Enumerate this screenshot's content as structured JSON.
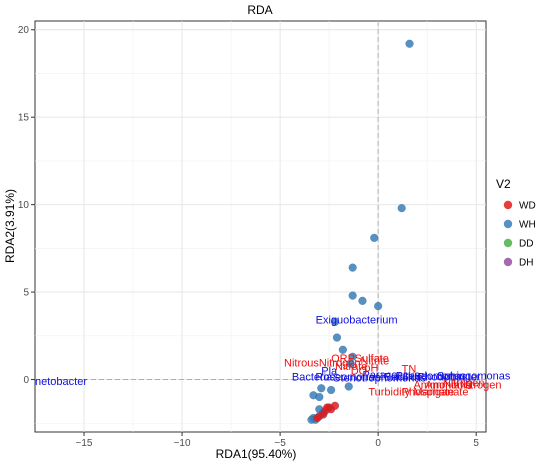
{
  "chart_data": {
    "type": "scatter",
    "title": "RDA",
    "xlabel": "RDA1(95.40%)",
    "ylabel": "RDA2(3.91%)",
    "xlim": [
      -17.5,
      5.5
    ],
    "ylim": [
      -3.0,
      20.5
    ],
    "xticks": [
      -15,
      -10,
      -5,
      0,
      5
    ],
    "yticks": [
      0,
      5,
      10,
      15,
      20
    ],
    "grid": true,
    "legend": {
      "title": "V2",
      "position": "right",
      "items": [
        {
          "name": "WD",
          "color": "#E41A1C"
        },
        {
          "name": "WH",
          "color": "#377EB8"
        },
        {
          "name": "DD",
          "color": "#4DAF4A"
        },
        {
          "name": "DH",
          "color": "#984EA3"
        }
      ]
    },
    "series": [
      {
        "name": "WH",
        "color": "#377EB8",
        "points": [
          [
            1.6,
            19.2
          ],
          [
            1.2,
            9.8
          ],
          [
            -0.2,
            8.1
          ],
          [
            -1.3,
            6.4
          ],
          [
            -0.8,
            4.5
          ],
          [
            -1.3,
            4.8
          ],
          [
            0.0,
            4.2
          ],
          [
            -2.2,
            3.3
          ],
          [
            -2.1,
            2.4
          ],
          [
            -1.8,
            1.7
          ],
          [
            -1.3,
            1.3
          ],
          [
            -1.4,
            0.9
          ],
          [
            -2.9,
            -0.5
          ],
          [
            -2.4,
            -0.6
          ],
          [
            -3.3,
            -0.9
          ],
          [
            -3.0,
            -1.0
          ],
          [
            -3.0,
            -1.7
          ],
          [
            -2.8,
            -1.9
          ],
          [
            -3.3,
            -2.2
          ],
          [
            -3.2,
            -2.3
          ],
          [
            -3.4,
            -2.3
          ],
          [
            -1.5,
            -0.4
          ]
        ]
      },
      {
        "name": "WD",
        "color": "#E41A1C",
        "points": [
          [
            -2.5,
            -1.6
          ],
          [
            -2.4,
            -1.7
          ],
          [
            -2.6,
            -1.6
          ],
          [
            -2.7,
            -1.8
          ],
          [
            -2.8,
            -2.0
          ],
          [
            -3.0,
            -2.1
          ],
          [
            -3.1,
            -2.2
          ],
          [
            -2.2,
            -1.5
          ]
        ]
      }
    ],
    "blue_labels": [
      {
        "text": "Exiguobacterium",
        "x": -1.1,
        "y": 3.2,
        "anchor": "middle"
      },
      {
        "text": "netobacter",
        "x": -17.5,
        "y": -0.3,
        "anchor": "start"
      },
      {
        "text": "Pla",
        "x": -2.9,
        "y": 0.3,
        "anchor": "start"
      },
      {
        "text": "Bacteria",
        "x": -4.4,
        "y": -0.05,
        "anchor": "start"
      },
      {
        "text": "Roseomonas",
        "x": -3.2,
        "y": -0.05,
        "anchor": "start"
      },
      {
        "text": "Stenotrophomonas",
        "x": -2.3,
        "y": -0.1,
        "anchor": "start"
      },
      {
        "text": "Paracoccus",
        "x": -0.8,
        "y": 0.05,
        "anchor": "start"
      },
      {
        "text": "Bacillus",
        "x": 0.3,
        "y": -0.05,
        "anchor": "start"
      },
      {
        "text": "Pseudomonas",
        "x": 0.9,
        "y": 0.0,
        "anchor": "start"
      },
      {
        "text": "Rhodobacter",
        "x": 2.0,
        "y": -0.05,
        "anchor": "start"
      },
      {
        "text": "Sphingomonas",
        "x": 3.0,
        "y": 0.0,
        "anchor": "start"
      }
    ],
    "red_labels": [
      {
        "text": "ORP",
        "x": -2.4,
        "y": 1.0,
        "anchor": "start"
      },
      {
        "text": "Sulfate",
        "x": -1.2,
        "y": 1.0,
        "anchor": "start"
      },
      {
        "text": "Nitrite",
        "x": -0.9,
        "y": 0.85,
        "anchor": "start"
      },
      {
        "text": "NitrousNitrogen",
        "x": -4.8,
        "y": 0.75,
        "anchor": "start"
      },
      {
        "text": "Nitrate",
        "x": -2.2,
        "y": 0.55,
        "anchor": "start"
      },
      {
        "text": "pH",
        "x": -0.7,
        "y": 0.45,
        "anchor": "start"
      },
      {
        "text": "DO",
        "x": -1.4,
        "y": 0.3,
        "anchor": "start"
      },
      {
        "text": "TN",
        "x": 1.2,
        "y": 0.4,
        "anchor": "start"
      },
      {
        "text": "AmmoniaNitrogen",
        "x": 1.8,
        "y": -0.5,
        "anchor": "start"
      },
      {
        "text": "Ammonia",
        "x": 2.4,
        "y": -0.5,
        "anchor": "start"
      },
      {
        "text": "Nitrogen",
        "x": 3.3,
        "y": -0.4,
        "anchor": "start"
      },
      {
        "text": "Turbidity",
        "x": -0.5,
        "y": -0.9,
        "anchor": "start"
      },
      {
        "text": "Phosphate",
        "x": 1.2,
        "y": -0.9,
        "anchor": "start"
      },
      {
        "text": "Manganate",
        "x": 1.8,
        "y": -0.9,
        "anchor": "start"
      }
    ]
  }
}
